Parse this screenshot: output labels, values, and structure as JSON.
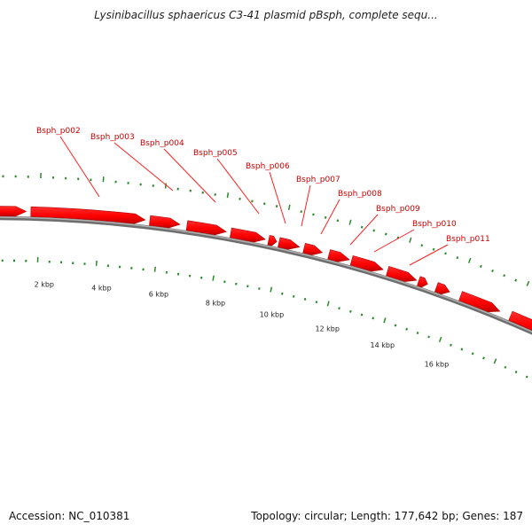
{
  "title": "Lysinibacillus sphaericus C3-41 plasmid pBsph, complete sequ...",
  "footer": {
    "accession": "Accession: NC_010381",
    "summary": "Topology: circular; Length: 177,642 bp; Genes: 187"
  },
  "scale_labels": [
    "2 kbp",
    "4 kbp",
    "6 kbp",
    "8 kbp",
    "10 kbp",
    "12 kbp",
    "14 kbp",
    "16 kbp"
  ],
  "genes": [
    "Bsph_p002",
    "Bsph_p003",
    "Bsph_p004",
    "Bsph_p005",
    "Bsph_p006",
    "Bsph_p007",
    "Bsph_p008",
    "Bsph_p009",
    "Bsph_p010",
    "Bsph_p011"
  ],
  "colors": {
    "gene": "#ff0000",
    "gene_dark": "#b30000",
    "backbone": "#888888",
    "ticks": "#2a8a2a",
    "label": "#cc0000"
  }
}
